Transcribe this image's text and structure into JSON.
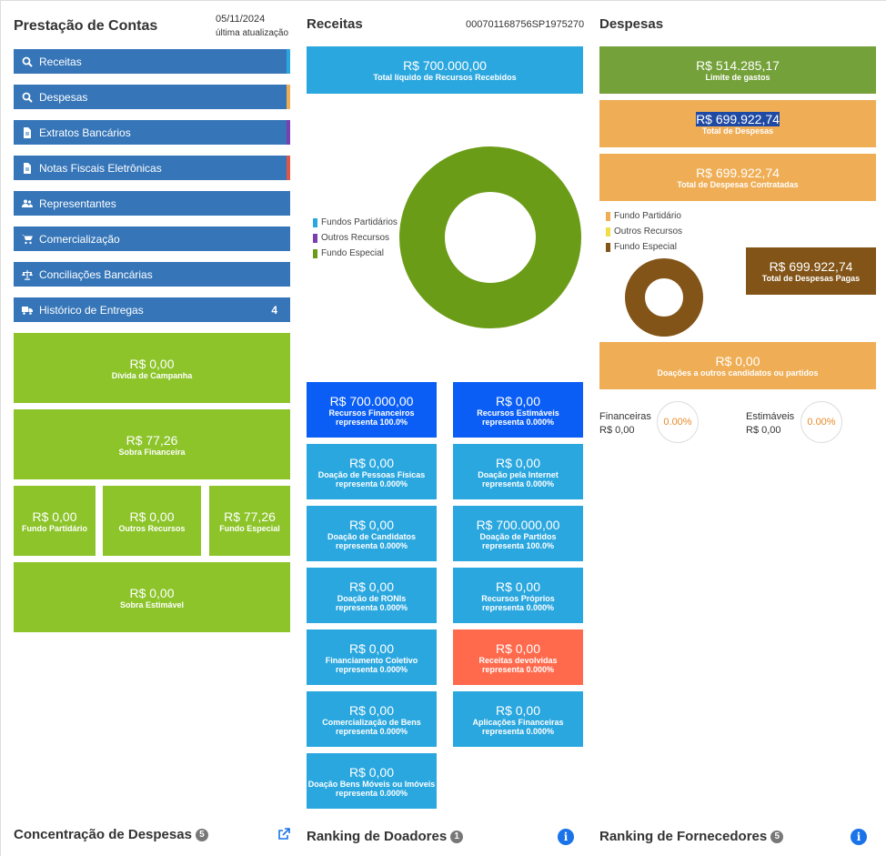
{
  "left": {
    "title": "Prestação de Contas",
    "date": "05/11/2024",
    "date_label": "última atualização",
    "nav": [
      {
        "label": "Receitas",
        "icon": "search-icon",
        "stripe": "#2aa7df"
      },
      {
        "label": "Despesas",
        "icon": "search-icon",
        "stripe": "#efae55"
      },
      {
        "label": "Extratos Bancários",
        "icon": "document-icon",
        "stripe": "#7a3fb0"
      },
      {
        "label": "Notas Fiscais Eletrônicas",
        "icon": "document-icon",
        "stripe": "#e0574a"
      },
      {
        "label": "Representantes",
        "icon": "users-icon",
        "stripe": ""
      },
      {
        "label": "Comercialização",
        "icon": "cart-icon",
        "stripe": ""
      },
      {
        "label": "Conciliações Bancárias",
        "icon": "scale-icon",
        "stripe": ""
      },
      {
        "label": "Histórico de Entregas",
        "icon": "truck-icon",
        "stripe": "",
        "badge": "4"
      }
    ],
    "divida": {
      "value": "R$ 0,00",
      "label": "Dívida de Campanha"
    },
    "sobra_fin": {
      "value": "R$ 77,26",
      "label": "Sobra Financeira"
    },
    "fundo_partidario": {
      "value": "R$ 0,00",
      "label": "Fundo Partidário"
    },
    "outros_recursos": {
      "value": "R$ 0,00",
      "label": "Outros Recursos"
    },
    "fundo_especial": {
      "value": "R$ 77,26",
      "label": "Fundo Especial"
    },
    "sobra_est": {
      "value": "R$ 0,00",
      "label": "Sobra Estimável"
    }
  },
  "receitas": {
    "title": "Receitas",
    "code": "000701168756SP1975270",
    "total": {
      "value": "R$ 700.000,00",
      "label": "Total líquido de Recursos Recebidos"
    },
    "legend": [
      {
        "label": "Fundos Partidários",
        "color": "#2aa7df"
      },
      {
        "label": "Outros Recursos",
        "color": "#7a3fb0"
      },
      {
        "label": "Fundo Especial",
        "color": "#6b9c17"
      }
    ],
    "tiles": [
      {
        "value": "R$ 700.000,00",
        "label": "Recursos Financeiros",
        "sub": "representa 100.0%",
        "color": "dblue"
      },
      {
        "value": "R$ 0,00",
        "label": "Recursos Estimáveis",
        "sub": "representa 0.000%",
        "color": "dblue"
      },
      {
        "value": "R$ 0,00",
        "label": "Doação de Pessoas Físicas",
        "sub": "representa 0.000%",
        "color": "blue"
      },
      {
        "value": "R$ 0,00",
        "label": "Doação pela Internet",
        "sub": "representa 0.000%",
        "color": "blue"
      },
      {
        "value": "R$ 0,00",
        "label": "Doação de Candidatos",
        "sub": "representa 0.000%",
        "color": "blue"
      },
      {
        "value": "R$ 700.000,00",
        "label": "Doação de Partidos",
        "sub": "representa 100.0%",
        "color": "blue"
      },
      {
        "value": "R$ 0,00",
        "label": "Doação de RONIs",
        "sub": "representa 0.000%",
        "color": "blue"
      },
      {
        "value": "R$ 0,00",
        "label": "Recursos Próprios",
        "sub": "representa 0.000%",
        "color": "blue"
      },
      {
        "value": "R$ 0,00",
        "label": "Financiamento Coletivo",
        "sub": "representa 0.000%",
        "color": "blue"
      },
      {
        "value": "R$ 0,00",
        "label": "Receitas devolvidas",
        "sub": "representa 0.000%",
        "color": "red"
      },
      {
        "value": "R$ 0,00",
        "label": "Comercialização de Bens",
        "sub": "representa 0.000%",
        "color": "blue"
      },
      {
        "value": "R$ 0,00",
        "label": "Aplicações Financeiras",
        "sub": "representa 0.000%",
        "color": "blue"
      },
      {
        "value": "R$ 0,00",
        "label": "Doação Bens Móveis ou Imóveis",
        "sub": "representa 0.000%",
        "color": "blue"
      }
    ]
  },
  "despesas": {
    "title": "Despesas",
    "limite": {
      "value": "R$ 514.285,17",
      "label": "Limite de gastos"
    },
    "total": {
      "value": "R$ 699.922,74",
      "label": "Total de Despesas"
    },
    "contratadas": {
      "value": "R$ 699.922,74",
      "label": "Total de Despesas Contratadas"
    },
    "legend": [
      {
        "label": "Fundo Partidário",
        "color": "#efae55"
      },
      {
        "label": "Outros Recursos",
        "color": "#f1dd4a"
      },
      {
        "label": "Fundo Especial",
        "color": "#825417"
      }
    ],
    "pagas": {
      "value": "R$ 699.922,74",
      "label": "Total de Despesas Pagas"
    },
    "doacoes": {
      "value": "R$ 0,00",
      "label": "Doações a outros candidatos ou partidos"
    },
    "financeiras": {
      "label": "Financeiras",
      "value": "R$ 0,00",
      "pct": "0.00%"
    },
    "estimaveis": {
      "label": "Estimáveis",
      "value": "R$ 0,00",
      "pct": "0.00%"
    }
  },
  "footer": {
    "concentracao": {
      "title": "Concentração de Despesas",
      "badge": "5"
    },
    "doadores": {
      "title": "Ranking de Doadores",
      "badge": "1"
    },
    "fornecedores": {
      "title": "Ranking de Fornecedores",
      "badge": "5"
    }
  }
}
